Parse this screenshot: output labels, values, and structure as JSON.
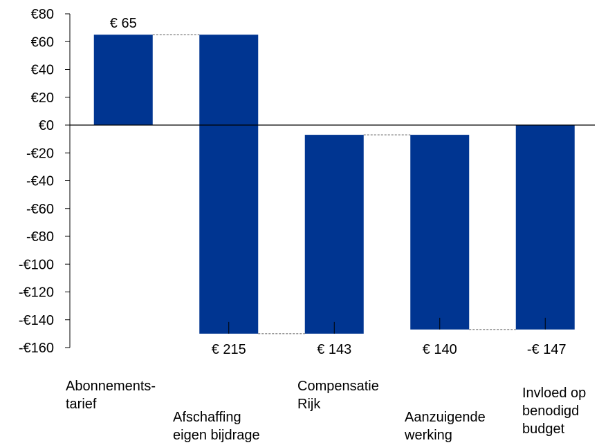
{
  "chart_data": {
    "type": "bar",
    "subtype": "waterfall",
    "title": "",
    "xlabel": "",
    "ylabel": "",
    "ylim": [
      -160,
      80
    ],
    "y_ticks": [
      80,
      60,
      40,
      20,
      0,
      -20,
      -40,
      -60,
      -80,
      -100,
      -120,
      -140,
      -160
    ],
    "y_tick_labels": [
      "€80",
      "€60",
      "€40",
      "€20",
      "€0",
      "-€20",
      "-€40",
      "-€60",
      "-€80",
      "-€100",
      "-€120",
      "-€140",
      "-€160"
    ],
    "grid": false,
    "bar_color": "#003591",
    "connector_color": "#555555",
    "categories": [
      [
        "Abonnements-",
        "tarief"
      ],
      [
        "Afschaffing",
        "eigen bijdrage"
      ],
      [
        "Compensatie",
        "Rijk"
      ],
      [
        "Aanzuigende",
        "werking"
      ],
      [
        "Invloed op",
        "benodigd",
        "budget"
      ]
    ],
    "bars": [
      {
        "start": 0,
        "end": 65,
        "label": "€ 65"
      },
      {
        "start": 65,
        "end": -150,
        "label": "€ 215"
      },
      {
        "start": -150,
        "end": -7,
        "label": "€ 143"
      },
      {
        "start": -7,
        "end": -147,
        "label": "€ 140"
      },
      {
        "start": -147,
        "end": 0,
        "label": "-€ 147"
      }
    ]
  }
}
